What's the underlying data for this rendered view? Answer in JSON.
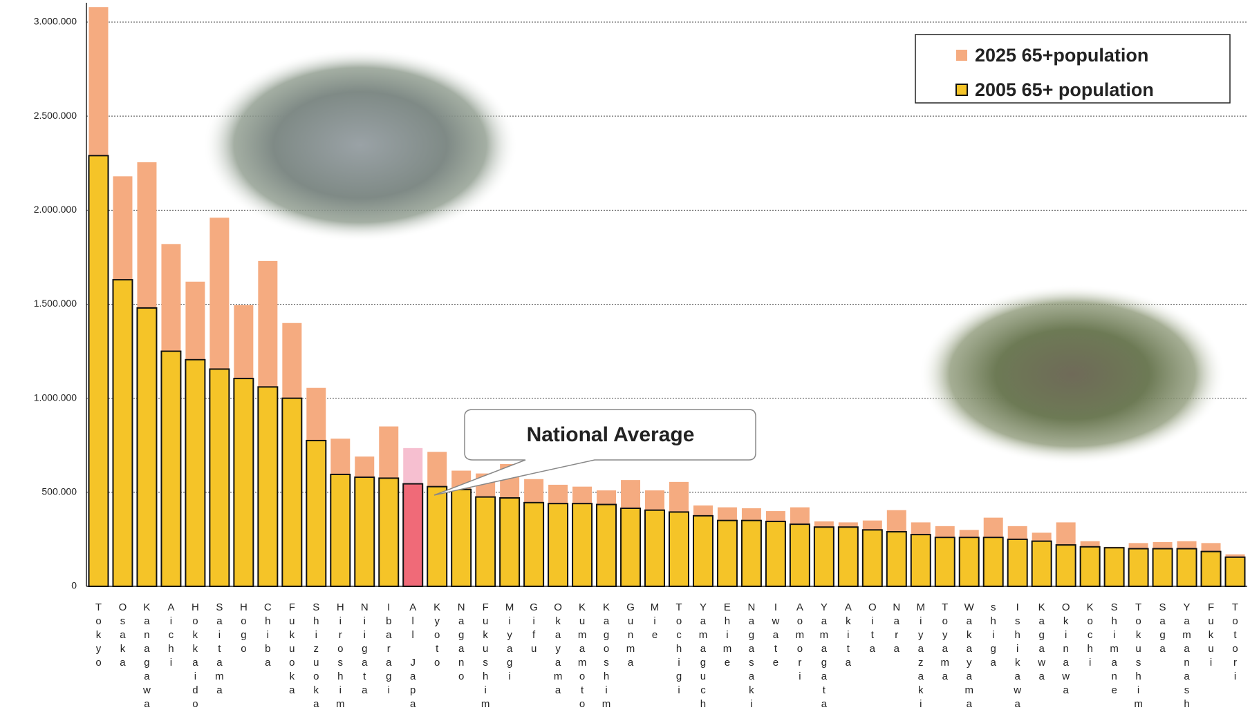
{
  "chart_data": {
    "type": "bar",
    "categories": [
      "Tokyo",
      "Osaka",
      "Kanagawa",
      "Aichi",
      "Hokkaido",
      "Saitama",
      "Hogo",
      "Chiba",
      "Fukuoka",
      "Shizuoka",
      "Hiroshima",
      "Niigata",
      "Ibaragi",
      "All Japan",
      "Kyoto",
      "Nagano",
      "Fukushima",
      "Miyagi",
      "Gifu",
      "Okayama",
      "Kumamoto",
      "Kagoshima",
      "Gunma",
      "Mie",
      "Tochigi",
      "Yamaguchi",
      "Ehime",
      "Nagasaki",
      "Iwate",
      "Aomori",
      "Yamagata",
      "Akita",
      "Oita",
      "Nara",
      "Miyazaki",
      "Toyama",
      "Wakayama",
      "shiga",
      "Ishikawa",
      "Kagawa",
      "Okinawa",
      "Kochi",
      "Shimane",
      "Tokushima",
      "Saga",
      "Yamanashi",
      "Fukui",
      "Totori"
    ],
    "series": [
      {
        "name": "2025 65+population",
        "color": "#f5ab80",
        "highlight_color": "#f6bfd0",
        "values": [
          3080000,
          2180000,
          2255000,
          1820000,
          1620000,
          1960000,
          1495000,
          1730000,
          1400000,
          1055000,
          785000,
          690000,
          850000,
          735000,
          715000,
          615000,
          600000,
          650000,
          570000,
          540000,
          530000,
          510000,
          565000,
          510000,
          555000,
          430000,
          420000,
          415000,
          400000,
          420000,
          345000,
          340000,
          350000,
          405000,
          340000,
          320000,
          300000,
          365000,
          320000,
          285000,
          340000,
          240000,
          210000,
          230000,
          235000,
          240000,
          230000,
          170000
        ]
      },
      {
        "name": "2005 65+ population",
        "color": "#f5c428",
        "highlight_color": "#f06a78",
        "values": [
          2290000,
          1630000,
          1480000,
          1250000,
          1205000,
          1155000,
          1105000,
          1060000,
          1000000,
          775000,
          595000,
          580000,
          575000,
          545000,
          530000,
          515000,
          475000,
          470000,
          445000,
          440000,
          440000,
          435000,
          415000,
          405000,
          395000,
          375000,
          350000,
          350000,
          345000,
          330000,
          315000,
          315000,
          300000,
          290000,
          275000,
          260000,
          260000,
          260000,
          250000,
          240000,
          220000,
          210000,
          205000,
          200000,
          200000,
          200000,
          185000,
          155000
        ]
      }
    ],
    "highlight_index": 13,
    "ylim": [
      0,
      3000000
    ],
    "yticks": [
      0,
      {
        "value": 500000,
        "label": "500.000"
      },
      {
        "value": 1000000,
        "label": "1.000.000"
      },
      {
        "value": 1500000,
        "label": "1.500.000"
      },
      {
        "value": 2000000,
        "label": "2.000.000"
      },
      {
        "value": 2500000,
        "label": "2.500.000"
      },
      {
        "value": 3000000,
        "label": "3.000.000"
      }
    ],
    "grid": true,
    "legend": "top-right",
    "annotations": [
      {
        "text": "National Average",
        "color": "#e8262d"
      }
    ]
  }
}
